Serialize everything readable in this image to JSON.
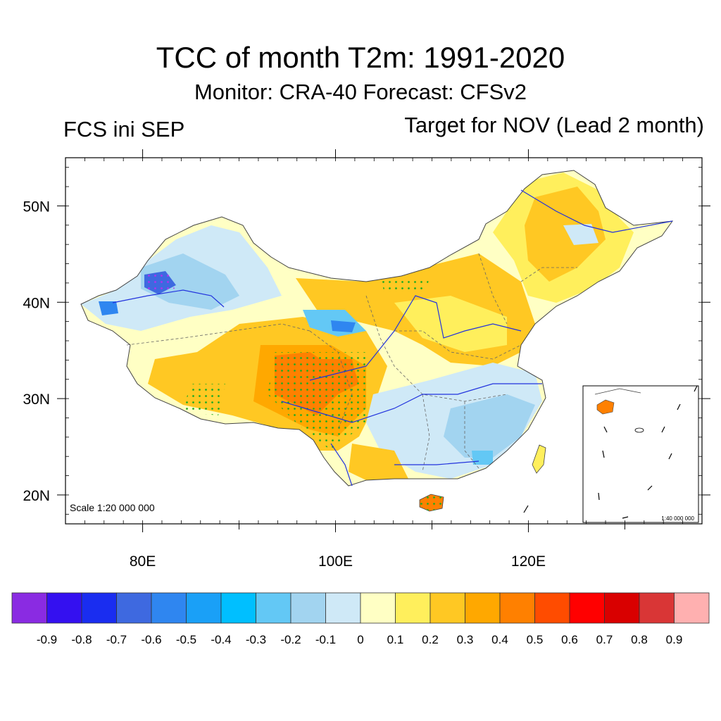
{
  "title": "TCC of month T2m: 1991-2020",
  "subtitle": "Monitor: CRA-40   Forecast: CFSv2",
  "left_label": "FCS ini SEP",
  "right_label": "Target for NOV (Lead 2 month)",
  "scale_main": "Scale 1:20 000 000",
  "scale_inset": "1:40 000 000",
  "map": {
    "lon_range": [
      72,
      138
    ],
    "lat_range": [
      17,
      55
    ],
    "lat_ticks": [
      {
        "value": 50,
        "label": "50N"
      },
      {
        "value": 40,
        "label": "40N"
      },
      {
        "value": 30,
        "label": "30N"
      },
      {
        "value": 20,
        "label": "20N"
      }
    ],
    "lon_ticks": [
      {
        "value": 80,
        "label": "80E"
      },
      {
        "value": 100,
        "label": "100E"
      },
      {
        "value": 120,
        "label": "120E"
      }
    ]
  },
  "colorbar": {
    "colors": [
      "#8a2be2",
      "#3410f0",
      "#1a2df0",
      "#3e69e0",
      "#2f86f0",
      "#1aa0f7",
      "#00bfff",
      "#63c8f5",
      "#a2d4f0",
      "#cfe9f7",
      "#ffffc4",
      "#ffef5c",
      "#ffc823",
      "#ffa800",
      "#ff8000",
      "#ff4c00",
      "#ff0000",
      "#d90000",
      "#d93636",
      "#ffb0b0"
    ],
    "labels": [
      "-0.9",
      "-0.8",
      "-0.7",
      "-0.6",
      "-0.5",
      "-0.4",
      "-0.3",
      "-0.2",
      "-0.1",
      "0",
      "0.1",
      "0.2",
      "0.3",
      "0.4",
      "0.5",
      "0.6",
      "0.7",
      "0.8",
      "0.9"
    ]
  },
  "regions": [
    {
      "name": "northeast",
      "color": "#ffc823"
    },
    {
      "name": "north-china-plain",
      "color": "#ffc823"
    },
    {
      "name": "tibet-east",
      "color": "#ffa800"
    },
    {
      "name": "tibet-core",
      "color": "#ff8000"
    },
    {
      "name": "xinjiang",
      "color": "#a2d4f0"
    },
    {
      "name": "south-china",
      "color": "#a2d4f0"
    },
    {
      "name": "hainan",
      "color": "#ff8000"
    },
    {
      "name": "taiwan",
      "color": "#ffef5c"
    }
  ]
}
